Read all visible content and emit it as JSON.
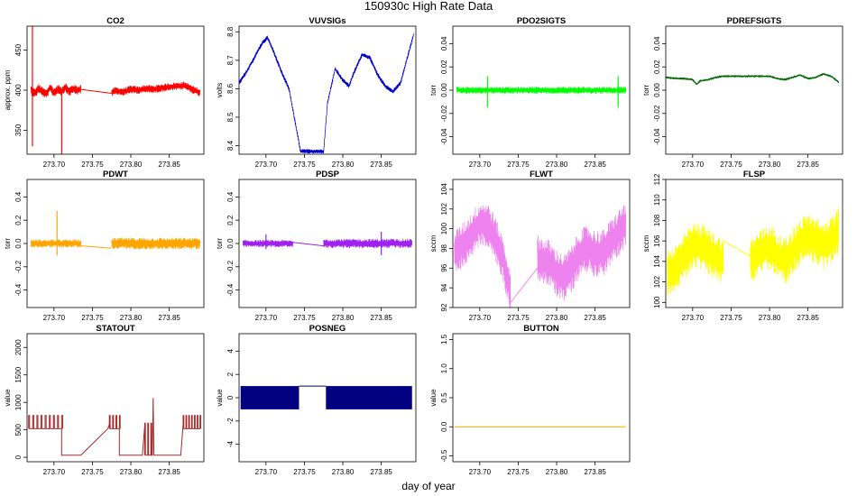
{
  "figure": {
    "title": "150930c   High Rate Data",
    "xlabel": "day of year"
  },
  "chart_data": [
    {
      "type": "line",
      "title": "CO2",
      "ylabel": "approx. ppm",
      "color": "#ff0000",
      "xlim": [
        273.665,
        273.895
      ],
      "ylim": [
        320,
        480
      ],
      "x_ticks": [
        "273.70",
        "273.75",
        "273.80",
        "273.85"
      ],
      "y_ticks": [
        "350",
        "400",
        "450"
      ],
      "segments": [
        {
          "x": [
            273.67,
            273.675,
            273.68,
            273.685,
            273.69,
            273.695,
            273.7,
            273.705,
            273.71,
            273.715,
            273.72,
            273.725,
            273.73,
            273.735
          ],
          "y": [
            400,
            396,
            402,
            398,
            395,
            403,
            397,
            401,
            399,
            404,
            398,
            402,
            400,
            401
          ],
          "noise": 6
        },
        {
          "x": [
            273.735,
            273.775
          ],
          "y": [
            401,
            396
          ],
          "noise": 0
        },
        {
          "x": [
            273.775,
            273.78,
            273.79,
            273.8,
            273.81,
            273.82,
            273.83,
            273.84,
            273.85,
            273.86,
            273.87,
            273.88,
            273.89
          ],
          "y": [
            397,
            399,
            398,
            401,
            400,
            402,
            401,
            403,
            404,
            405,
            406,
            401,
            397
          ],
          "noise": 5
        }
      ],
      "spikes": [
        {
          "x": 273.672,
          "y": [
            330,
            480
          ]
        },
        {
          "x": 273.71,
          "y": [
            320,
            400
          ]
        }
      ]
    },
    {
      "type": "line",
      "title": "VUVSIGs",
      "ylabel": "volts",
      "color": "#0000cc",
      "xlim": [
        273.665,
        273.895
      ],
      "ylim": [
        8.37,
        8.82
      ],
      "x_ticks": [
        "273.70",
        "273.75",
        "273.80",
        "273.85"
      ],
      "y_ticks": [
        "8.4",
        "8.5",
        "8.6",
        "8.7",
        "8.8"
      ],
      "segments": [
        {
          "x": [
            273.665,
            273.675,
            273.685,
            273.695,
            273.702,
            273.71,
            273.72,
            273.73,
            273.745,
            273.775,
            273.78,
            273.79,
            273.8,
            273.808,
            273.815,
            273.825,
            273.835,
            273.845,
            273.855,
            273.865,
            273.875,
            273.885,
            273.892
          ],
          "y": [
            8.62,
            8.66,
            8.71,
            8.76,
            8.78,
            8.73,
            8.66,
            8.6,
            8.38,
            8.38,
            8.55,
            8.67,
            8.63,
            8.61,
            8.66,
            8.72,
            8.71,
            8.65,
            8.61,
            8.59,
            8.62,
            8.72,
            8.79
          ],
          "noise": 0.008
        }
      ]
    },
    {
      "type": "line",
      "title": "PDO2SIGTS",
      "ylabel": "torr",
      "color": "#00ff00",
      "xlim": [
        273.665,
        273.895
      ],
      "ylim": [
        -0.055,
        0.055
      ],
      "x_ticks": [
        "273.70",
        "273.75",
        "273.80",
        "273.85"
      ],
      "y_ticks": [
        "-0.04",
        "-0.02",
        "0.00",
        "0.02",
        "0.04"
      ],
      "segments": [
        {
          "x": [
            273.67,
            273.71,
            273.72,
            273.73,
            273.74,
            273.75,
            273.76,
            273.77,
            273.775,
            273.8,
            273.83,
            273.86,
            273.89
          ],
          "y": [
            0.0,
            0.0,
            0.0,
            0.0,
            0.0,
            0.0,
            0.0,
            0.0,
            0.0,
            0.0,
            0.0,
            0.0,
            0.0
          ],
          "noise": 0.003
        }
      ],
      "spikes": [
        {
          "x": 273.71,
          "y": [
            -0.015,
            0.012
          ]
        },
        {
          "x": 273.88,
          "y": [
            -0.015,
            0.012
          ]
        }
      ]
    },
    {
      "type": "line",
      "title": "PDREFSIGTS",
      "ylabel": "torr",
      "color": "#006400",
      "xlim": [
        273.665,
        273.895
      ],
      "ylim": [
        -0.055,
        0.055
      ],
      "x_ticks": [
        "273.70",
        "273.75",
        "273.80",
        "273.85"
      ],
      "y_ticks": [
        "-0.04",
        "-0.02",
        "0.00",
        "0.02",
        "0.04"
      ],
      "segments": [
        {
          "x": [
            273.665,
            273.68,
            273.69,
            273.7,
            273.705,
            273.71,
            273.72,
            273.73,
            273.74,
            273.75,
            273.76,
            273.77,
            273.78,
            273.79,
            273.8,
            273.81,
            273.82,
            273.83,
            273.84,
            273.85,
            273.86,
            273.87,
            273.88,
            273.89
          ],
          "y": [
            0.011,
            0.01,
            0.01,
            0.009,
            0.005,
            0.008,
            0.009,
            0.011,
            0.012,
            0.012,
            0.012,
            0.012,
            0.012,
            0.012,
            0.012,
            0.01,
            0.009,
            0.011,
            0.013,
            0.01,
            0.011,
            0.014,
            0.012,
            0.007
          ],
          "noise": 0.0008
        }
      ]
    },
    {
      "type": "line",
      "title": "PDWT",
      "ylabel": "torr",
      "color": "#ffa500",
      "xlim": [
        273.665,
        273.895
      ],
      "ylim": [
        -0.55,
        0.55
      ],
      "x_ticks": [
        "273.70",
        "273.75",
        "273.80",
        "273.85"
      ],
      "y_ticks": [
        "-0.4",
        "-0.2",
        "0.0",
        "0.2",
        "0.4"
      ],
      "segments": [
        {
          "x": [
            273.67,
            273.7,
            273.735
          ],
          "y": [
            0.0,
            0.0,
            0.0
          ],
          "noise": 0.035
        },
        {
          "x": [
            273.735,
            273.775
          ],
          "y": [
            -0.02,
            -0.04
          ],
          "noise": 0
        },
        {
          "x": [
            273.775,
            273.8,
            273.83,
            273.86,
            273.89
          ],
          "y": [
            0.0,
            0.0,
            0.0,
            0.0,
            0.0
          ],
          "noise": 0.05
        }
      ],
      "spikes": [
        {
          "x": 273.704,
          "y": [
            -0.1,
            0.28
          ]
        }
      ]
    },
    {
      "type": "line",
      "title": "PDSP",
      "ylabel": "torr",
      "color": "#a020f0",
      "xlim": [
        273.665,
        273.895
      ],
      "ylim": [
        -0.55,
        0.55
      ],
      "x_ticks": [
        "273.70",
        "273.75",
        "273.80",
        "273.85"
      ],
      "y_ticks": [
        "-0.4",
        "-0.2",
        "0.0",
        "0.2",
        "0.4"
      ],
      "segments": [
        {
          "x": [
            273.67,
            273.7,
            273.735
          ],
          "y": [
            0.0,
            0.0,
            0.0
          ],
          "noise": 0.03
        },
        {
          "x": [
            273.735,
            273.775
          ],
          "y": [
            0.01,
            -0.02
          ],
          "noise": 0
        },
        {
          "x": [
            273.775,
            273.8,
            273.83,
            273.86,
            273.89
          ],
          "y": [
            0.0,
            0.0,
            0.0,
            0.0,
            0.0
          ],
          "noise": 0.04
        }
      ],
      "spikes": [
        {
          "x": 273.7,
          "y": [
            -0.05,
            0.08
          ]
        },
        {
          "x": 273.85,
          "y": [
            -0.1,
            0.1
          ]
        }
      ]
    },
    {
      "type": "line",
      "title": "FLWT",
      "ylabel": "sccm",
      "color": "#ee82ee",
      "xlim": [
        273.665,
        273.895
      ],
      "ylim": [
        92,
        105
      ],
      "x_ticks": [
        "273.70",
        "273.75",
        "273.80",
        "273.85"
      ],
      "y_ticks": [
        "92",
        "94",
        "96",
        "98",
        "100",
        "102",
        "104"
      ],
      "segments": [
        {
          "x": [
            273.667,
            273.68,
            273.69,
            273.7,
            273.71,
            273.72,
            273.73,
            273.74
          ],
          "y": [
            97.5,
            98.5,
            99.5,
            100.5,
            100.5,
            99.0,
            97.0,
            93.5
          ],
          "noise": 2.3
        },
        {
          "x": [
            273.74,
            273.775
          ],
          "y": [
            92.5,
            96
          ],
          "noise": 0
        },
        {
          "x": [
            273.775,
            273.79,
            273.8,
            273.81,
            273.82,
            273.83,
            273.84,
            273.85,
            273.86,
            273.87,
            273.88,
            273.89
          ],
          "y": [
            97,
            96.5,
            95.5,
            95.0,
            96.0,
            97.5,
            98.0,
            97.5,
            97.5,
            98.5,
            99.5,
            100.5
          ],
          "noise": 2.4
        }
      ]
    },
    {
      "type": "line",
      "title": "FLSP",
      "ylabel": "sccm",
      "color": "#ffff00",
      "xlim": [
        273.665,
        273.895
      ],
      "ylim": [
        99.5,
        112
      ],
      "x_ticks": [
        "273.70",
        "273.75",
        "273.80",
        "273.85"
      ],
      "y_ticks": [
        "100",
        "102",
        "104",
        "106",
        "108",
        "110",
        "112"
      ],
      "segments": [
        {
          "x": [
            273.667,
            273.68,
            273.69,
            273.7,
            273.71,
            273.72,
            273.73,
            273.74
          ],
          "y": [
            103.0,
            103.5,
            104.5,
            105.5,
            105.5,
            105.0,
            104.5,
            104.0
          ],
          "noise": 2.3
        },
        {
          "x": [
            273.74,
            273.775
          ],
          "y": [
            106,
            104.5
          ],
          "noise": 0
        },
        {
          "x": [
            273.775,
            273.79,
            273.8,
            273.81,
            273.82,
            273.83,
            273.84,
            273.85,
            273.86,
            273.87,
            273.88,
            273.89
          ],
          "y": [
            104.0,
            105.0,
            105.5,
            104.5,
            104.0,
            105.0,
            106.0,
            106.5,
            106.0,
            105.5,
            106.0,
            107.0
          ],
          "noise": 2.3
        }
      ]
    },
    {
      "type": "line",
      "title": "STATOUT",
      "ylabel": "value",
      "color": "#a52a2a",
      "xlim": [
        273.665,
        273.895
      ],
      "ylim": [
        -80,
        2250
      ],
      "x_ticks": [
        "273.70",
        "273.75",
        "273.80",
        "273.85"
      ],
      "y_ticks": [
        "0",
        "500",
        "1000",
        "1500",
        "2000"
      ],
      "segments": [
        {
          "x": [
            273.667,
            273.69,
            273.71
          ],
          "y": [
            600,
            600,
            600
          ],
          "noise": 0,
          "pulses": {
            "count": 16,
            "lo": 520,
            "hi": 760
          }
        },
        {
          "x": [
            273.71,
            273.71,
            273.735,
            273.77,
            273.772
          ],
          "y": [
            520,
            40,
            40,
            520,
            600
          ],
          "noise": 0
        },
        {
          "x": [
            273.772,
            273.785
          ],
          "y": [
            600,
            600
          ],
          "noise": 0,
          "pulses": {
            "count": 6,
            "lo": 520,
            "hi": 760
          }
        },
        {
          "x": [
            273.785,
            273.785,
            273.815,
            273.818
          ],
          "y": [
            520,
            40,
            40,
            560
          ],
          "noise": 0
        },
        {
          "x": [
            273.818,
            273.826
          ],
          "y": [
            560,
            560
          ],
          "noise": 0,
          "pulses": {
            "count": 4,
            "lo": 40,
            "hi": 620
          }
        },
        {
          "x": [
            273.826,
            273.828,
            273.829,
            273.83,
            273.83,
            273.865,
            273.868
          ],
          "y": [
            40,
            40,
            1080,
            40,
            40,
            40,
            600
          ],
          "noise": 0
        },
        {
          "x": [
            273.868,
            273.89
          ],
          "y": [
            600,
            600
          ],
          "noise": 0,
          "pulses": {
            "count": 12,
            "lo": 520,
            "hi": 760
          }
        }
      ]
    },
    {
      "type": "area",
      "title": "POSNEG",
      "ylabel": "value",
      "color": "#000080",
      "xlim": [
        273.665,
        273.895
      ],
      "ylim": [
        -5.5,
        5.5
      ],
      "x_ticks": [
        "273.70",
        "273.75",
        "273.80",
        "273.85"
      ],
      "y_ticks": [
        "-4",
        "-2",
        "0",
        "2",
        "4"
      ],
      "bands": [
        {
          "x": [
            273.667,
            273.743
          ],
          "y": [
            -1,
            1
          ]
        },
        {
          "x": [
            273.778,
            273.89
          ],
          "y": [
            -1,
            1
          ]
        }
      ],
      "segments": [
        {
          "x": [
            273.743,
            273.778
          ],
          "y": [
            1,
            1
          ],
          "noise": 0
        }
      ]
    },
    {
      "type": "line",
      "title": "BUTTON",
      "ylabel": "value",
      "color": "#ffa500",
      "xlim": [
        273.665,
        273.895
      ],
      "ylim": [
        -0.6,
        1.6
      ],
      "x_ticks": [
        "273.70",
        "273.75",
        "273.80",
        "273.85"
      ],
      "y_ticks": [
        "-0.5",
        "0.0",
        "0.5",
        "1.0",
        "1.5"
      ],
      "segments": [
        {
          "x": [
            273.667,
            273.89
          ],
          "y": [
            0,
            0
          ],
          "noise": 0
        }
      ]
    }
  ]
}
